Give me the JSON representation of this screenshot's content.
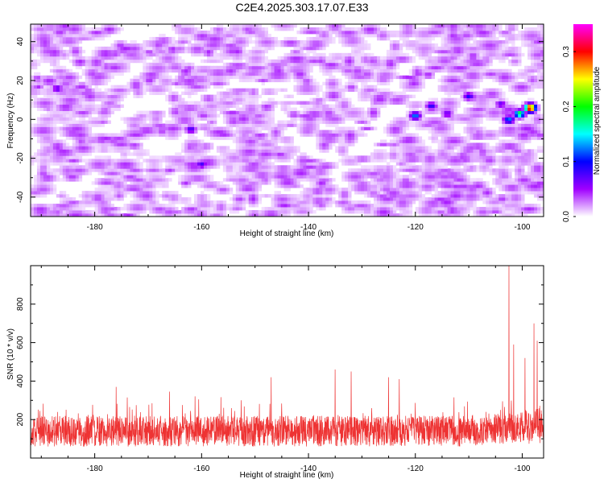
{
  "title": "C2E4.2025.303.17.07.E33",
  "chart_data": [
    {
      "type": "heatmap",
      "xlabel": "Height of straight line (km)",
      "ylabel": "Frequency (Hz)",
      "xlim": [
        -192,
        -96
      ],
      "ylim": [
        -50,
        49
      ],
      "x_ticks": [
        -180,
        -160,
        -140,
        -120,
        -100
      ],
      "y_ticks": [
        -40,
        -20,
        0,
        20,
        40
      ],
      "colorbar": {
        "label": "Normalized spectral amplitude",
        "range": [
          0.0,
          0.35
        ],
        "ticks": [
          0.0,
          0.1,
          0.2,
          0.3
        ],
        "colormap": [
          "#ffffff",
          "#a000ff",
          "#0000ff",
          "#00ffff",
          "#00ff00",
          "#ffff00",
          "#ff0000",
          "#ff00ff"
        ]
      },
      "hotspots": [
        {
          "x": -98.5,
          "y": 6,
          "value": 0.35
        },
        {
          "x": -100.5,
          "y": 3,
          "value": 0.2
        },
        {
          "x": -102.5,
          "y": 0,
          "value": 0.13
        },
        {
          "x": -120,
          "y": 2,
          "value": 0.13
        },
        {
          "x": -117,
          "y": 7,
          "value": 0.09
        },
        {
          "x": -114,
          "y": 3,
          "value": 0.07
        },
        {
          "x": -110,
          "y": 12,
          "value": 0.09
        },
        {
          "x": -104,
          "y": 8,
          "value": 0.07
        },
        {
          "x": -160,
          "y": -23,
          "value": 0.08
        },
        {
          "x": -162,
          "y": -5,
          "value": 0.08
        },
        {
          "x": -187,
          "y": 16,
          "value": 0.07
        }
      ],
      "background_level": 0.03,
      "grid": false
    },
    {
      "type": "line",
      "xlabel": "Height of straight line (km)",
      "ylabel": "SNR (10 * v/v)",
      "xlim": [
        -192,
        -96
      ],
      "ylim": [
        0,
        1000
      ],
      "x_ticks": [
        -180,
        -160,
        -140,
        -120,
        -100
      ],
      "y_ticks": [
        200,
        400,
        600,
        800
      ],
      "color": "#ee3333",
      "series": [
        {
          "baseline_range": [
            60,
            220
          ],
          "typical_peaks": [
            {
              "x": -176,
              "y": 370
            },
            {
              "x": -166,
              "y": 345
            },
            {
              "x": -147,
              "y": 420
            },
            {
              "x": -135,
              "y": 460
            },
            {
              "x": -132,
              "y": 450
            },
            {
              "x": -125,
              "y": 420
            },
            {
              "x": -123,
              "y": 410
            }
          ],
          "major_peaks": [
            {
              "x": -102.5,
              "y": 1000
            },
            {
              "x": -101.6,
              "y": 590
            },
            {
              "x": -99.5,
              "y": 520
            },
            {
              "x": -97.8,
              "y": 700
            },
            {
              "x": -97.2,
              "y": 610
            }
          ]
        }
      ],
      "grid": false
    }
  ]
}
